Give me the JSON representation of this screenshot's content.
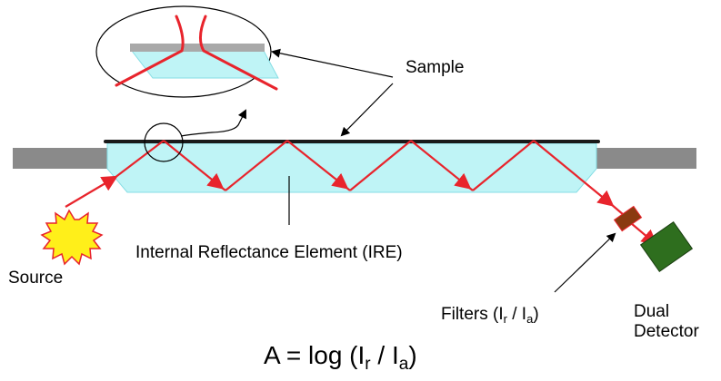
{
  "labels": {
    "sample": "Sample",
    "ire": "Internal Reflectance Element (IRE)",
    "source": "Source",
    "filters_prefix": "Filters (I",
    "filters_sub1": "r",
    "filters_mid": " / I",
    "filters_sub2": "a",
    "filters_suffix": ")",
    "detector_line1": "Dual",
    "detector_line2": "Detector"
  },
  "equation": {
    "prefix": "A = log (I",
    "sub1": "r",
    "mid": " / I",
    "sub2": "a",
    "suffix": ")"
  },
  "colors": {
    "beam": "#e8242c",
    "ire_fill": "#bff4f6",
    "ire_edge": "#86dde4",
    "holder": "#8a8a8a",
    "sample_film": "#1a1a1a",
    "source_fill": "#ffef1a",
    "source_edge": "#e8242c",
    "filter_fill": "#8a3a10",
    "detector_fill": "#2e6e1e"
  }
}
